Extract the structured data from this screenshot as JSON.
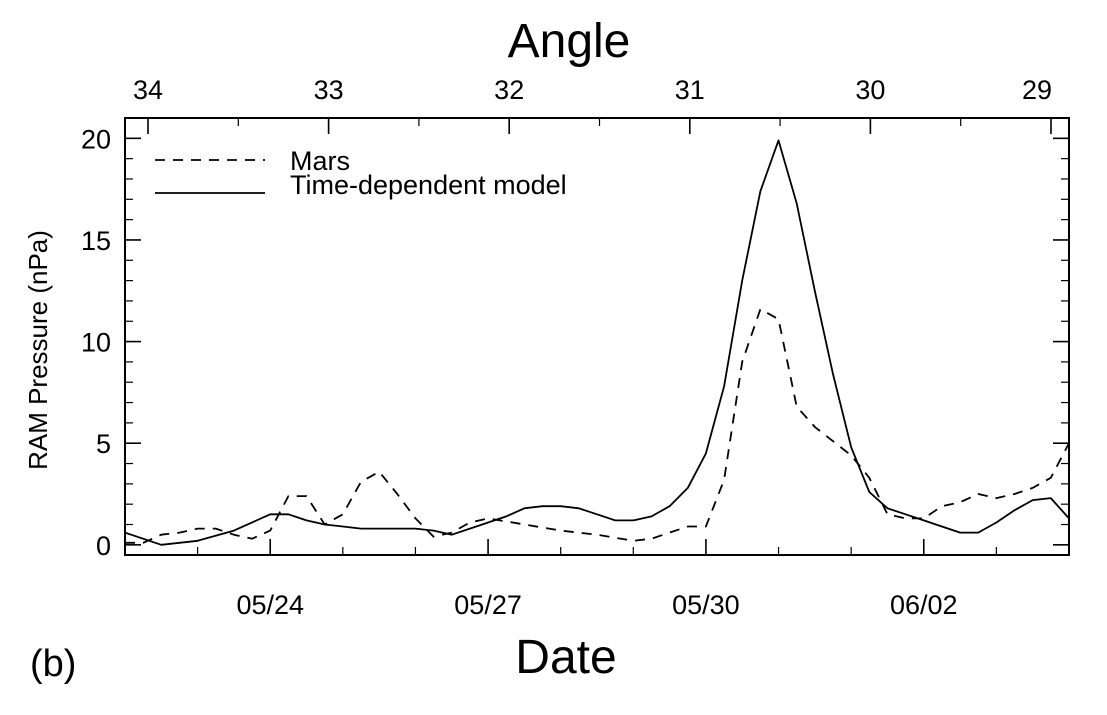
{
  "chart_data": {
    "type": "line",
    "panel_label": "(b)",
    "top_axis": {
      "label": "Angle",
      "tick_labels": [
        "34",
        "33",
        "32",
        "31",
        "30",
        "29"
      ]
    },
    "xlabel": "Date",
    "ylabel": "RAM Pressure (nPa)",
    "ylim": [
      -0.5,
      21
    ],
    "y_ticks": [
      0,
      5,
      10,
      15,
      20
    ],
    "y_tick_labels": [
      "0",
      "5",
      "10",
      "15",
      "20"
    ],
    "x_axis": {
      "start": "05/22",
      "end": "06/04",
      "tick_labels": [
        "05/24",
        "05/27",
        "05/30",
        "06/02"
      ],
      "tick_dates": [
        "05/24",
        "05/27",
        "05/30",
        "06/02"
      ]
    },
    "legend": {
      "placement": "top-left",
      "entries": [
        "Mars",
        "Time-dependent model"
      ]
    },
    "series": [
      {
        "name": "Mars",
        "style": "dashed",
        "color": "#000000",
        "x": [
          "05/22 00:00",
          "05/22 06:00",
          "05/22 12:00",
          "05/22 18:00",
          "05/23 00:00",
          "05/23 06:00",
          "05/23 12:00",
          "05/23 18:00",
          "05/24 00:00",
          "05/24 06:00",
          "05/24 12:00",
          "05/24 18:00",
          "05/25 00:00",
          "05/25 06:00",
          "05/25 12:00",
          "05/25 18:00",
          "05/26 00:00",
          "05/26 06:00",
          "05/26 12:00",
          "05/26 18:00",
          "05/27 00:00",
          "05/27 12:00",
          "05/28 00:00",
          "05/28 12:00",
          "05/29 00:00",
          "05/29 06:00",
          "05/29 12:00",
          "05/29 18:00",
          "05/30 00:00",
          "05/30 06:00",
          "05/30 12:00",
          "05/30 18:00",
          "05/31 00:00",
          "05/31 06:00",
          "05/31 12:00",
          "05/31 18:00",
          "06/01 00:00",
          "06/01 06:00",
          "06/01 12:00",
          "06/01 18:00",
          "06/02 00:00",
          "06/02 06:00",
          "06/02 12:00",
          "06/02 18:00",
          "06/03 00:00",
          "06/03 06:00",
          "06/03 12:00",
          "06/03 18:00",
          "06/04 00:00"
        ],
        "y": [
          0.1,
          0.1,
          0.5,
          0.6,
          0.8,
          0.8,
          0.5,
          0.3,
          0.7,
          2.4,
          2.4,
          1.0,
          1.5,
          3.1,
          3.6,
          2.5,
          1.3,
          0.4,
          0.6,
          1.1,
          1.3,
          1.0,
          0.7,
          0.5,
          0.2,
          0.3,
          0.6,
          0.9,
          0.9,
          3.2,
          9.0,
          11.6,
          11.1,
          6.8,
          5.8,
          5.1,
          4.4,
          3.3,
          1.5,
          1.3,
          1.3,
          1.9,
          2.1,
          2.5,
          2.3,
          2.5,
          2.8,
          3.3,
          5.0
        ]
      },
      {
        "name": "Time-dependent model",
        "style": "solid",
        "color": "#000000",
        "x": [
          "05/22 00:00",
          "05/22 12:00",
          "05/23 00:00",
          "05/23 12:00",
          "05/24 00:00",
          "05/24 06:00",
          "05/24 12:00",
          "05/24 18:00",
          "05/25 00:00",
          "05/25 06:00",
          "05/25 12:00",
          "05/25 18:00",
          "05/26 00:00",
          "05/26 06:00",
          "05/26 12:00",
          "05/26 18:00",
          "05/27 00:00",
          "05/27 06:00",
          "05/27 12:00",
          "05/27 18:00",
          "05/28 00:00",
          "05/28 06:00",
          "05/28 12:00",
          "05/28 18:00",
          "05/29 00:00",
          "05/29 06:00",
          "05/29 12:00",
          "05/29 18:00",
          "05/30 00:00",
          "05/30 06:00",
          "05/30 12:00",
          "05/30 18:00",
          "05/31 00:00",
          "05/31 06:00",
          "05/31 12:00",
          "05/31 18:00",
          "06/01 00:00",
          "06/01 06:00",
          "06/01 12:00",
          "06/01 18:00",
          "06/02 00:00",
          "06/02 06:00",
          "06/02 12:00",
          "06/02 18:00",
          "06/03 00:00",
          "06/03 06:00",
          "06/03 12:00",
          "06/03 18:00",
          "06/04 00:00"
        ],
        "y": [
          0.6,
          0.0,
          0.2,
          0.7,
          1.5,
          1.5,
          1.2,
          1.0,
          0.9,
          0.8,
          0.8,
          0.8,
          0.8,
          0.7,
          0.5,
          0.8,
          1.1,
          1.4,
          1.8,
          1.9,
          1.9,
          1.8,
          1.5,
          1.2,
          1.2,
          1.4,
          1.9,
          2.8,
          4.5,
          7.8,
          13.0,
          17.4,
          19.9,
          16.8,
          12.5,
          8.4,
          4.8,
          2.6,
          1.8,
          1.5,
          1.2,
          0.9,
          0.6,
          0.6,
          1.1,
          1.7,
          2.2,
          2.3,
          1.3
        ]
      }
    ]
  }
}
